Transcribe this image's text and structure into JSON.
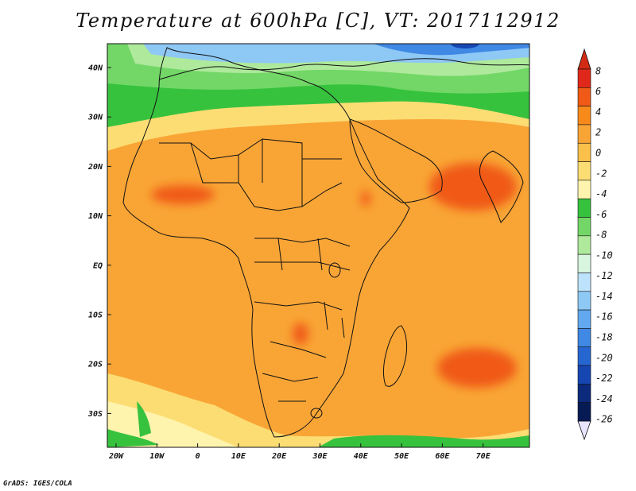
{
  "title": "Temperature at 600hPa [C], VT: 2017112912",
  "credit": "GrADS: IGES/COLA",
  "map": {
    "lon_labels": [
      "20W",
      "10W",
      "0",
      "10E",
      "20E",
      "30E",
      "40E",
      "50E",
      "60E",
      "70E"
    ],
    "lat_labels": [
      "40N",
      "30N",
      "20N",
      "10N",
      "EQ",
      "10S",
      "20S",
      "30S"
    ]
  },
  "colorbar": {
    "labels": [
      "8",
      "6",
      "4",
      "2",
      "0",
      "-2",
      "-4",
      "-6",
      "-8",
      "-10",
      "-12",
      "-14",
      "-16",
      "-18",
      "-20",
      "-22",
      "-24",
      "-26"
    ],
    "colors": [
      "#e0281a",
      "#f05a16",
      "#f88a1c",
      "#f9a536",
      "#fbc04a",
      "#fcdd74",
      "#fff4ae",
      "#37c23e",
      "#72d766",
      "#aee99c",
      "#d8f5de",
      "#bde2fb",
      "#8ec8f5",
      "#62a9ef",
      "#3f88e4",
      "#2666d1",
      "#1646b2",
      "#0c2a7c",
      "#061a54"
    ],
    "top_arrow_color": "#d22a14",
    "bottom_arrow_color": "#e8e4ff"
  },
  "colors": {
    "warm_core": "#f05a16",
    "warm": "#f9a536",
    "mild": "#fbc04a",
    "pale": "#fcdd74",
    "cream": "#fff4ae",
    "green": "#37c23e",
    "light_green": "#aee99c",
    "cold": "#3f88e4",
    "coldest": "#2666d1"
  }
}
